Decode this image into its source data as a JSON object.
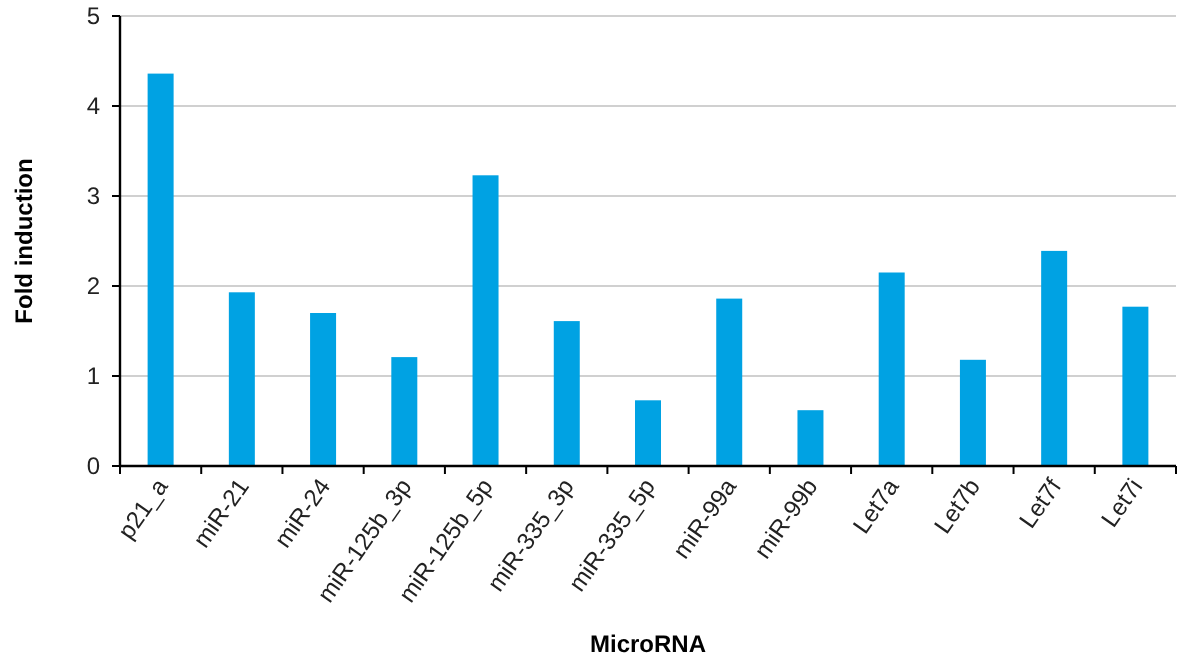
{
  "chart_data": {
    "type": "bar",
    "xlabel": "MicroRNA",
    "ylabel": "Fold induction",
    "categories": [
      "p21_a",
      "miR-21",
      "miR-24",
      "miR-125b_3p",
      "miR-125b_5p",
      "miR-335_3p",
      "miR-335_5p",
      "miR-99a",
      "miR-99b",
      "Let7a",
      "Let7b",
      "Let7f",
      "Let7i"
    ],
    "values": [
      4.36,
      1.93,
      1.7,
      1.21,
      3.23,
      1.61,
      0.73,
      1.86,
      0.62,
      2.15,
      1.18,
      2.39,
      1.77
    ],
    "color": "#00a2e3",
    "ylim": [
      0,
      5
    ],
    "yticks": [
      0,
      1,
      2,
      3,
      4,
      5
    ],
    "grid": "y"
  }
}
